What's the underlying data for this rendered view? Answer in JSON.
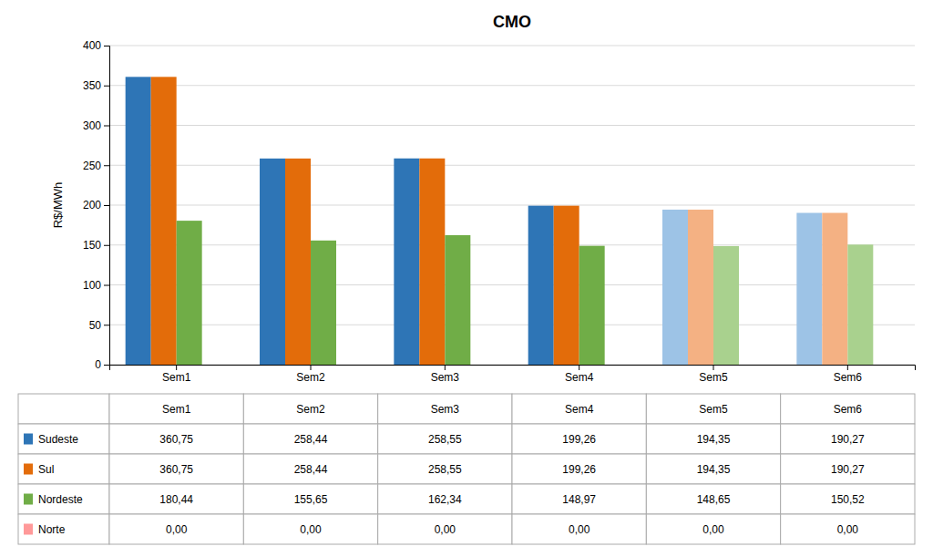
{
  "chart_data": {
    "type": "bar",
    "title": "CMO",
    "y_label": "R$/MWh",
    "categories": [
      "Sem1",
      "Sem2",
      "Sem3",
      "Sem4",
      "Sem5",
      "Sem6"
    ],
    "series": [
      {
        "name": "Sudeste",
        "color": "#2E75B6",
        "colors": [
          "#2E75B6",
          "#2E75B6",
          "#2E75B6",
          "#2E75B6",
          "#9DC3E6",
          "#9DC3E6"
        ],
        "values": [
          360.75,
          258.44,
          258.55,
          199.26,
          194.35,
          190.27
        ],
        "value_labels": [
          "360,75",
          "258,44",
          "258,55",
          "199,26",
          "194,35",
          "190,27"
        ]
      },
      {
        "name": "Sul",
        "color": "#E36C0A",
        "colors": [
          "#E36C0A",
          "#E36C0A",
          "#E36C0A",
          "#E36C0A",
          "#F4B183",
          "#F4B183"
        ],
        "values": [
          360.75,
          258.44,
          258.55,
          199.26,
          194.35,
          190.27
        ],
        "value_labels": [
          "360,75",
          "258,44",
          "258,55",
          "199,26",
          "194,35",
          "190,27"
        ]
      },
      {
        "name": "Nordeste",
        "color": "#70AD47",
        "colors": [
          "#70AD47",
          "#70AD47",
          "#70AD47",
          "#70AD47",
          "#A9D18E",
          "#A9D18E"
        ],
        "values": [
          180.44,
          155.65,
          162.34,
          148.97,
          148.65,
          150.52
        ],
        "value_labels": [
          "180,44",
          "155,65",
          "162,34",
          "148,97",
          "148,65",
          "150,52"
        ]
      },
      {
        "name": "Norte",
        "color": "#FF9999",
        "colors": [
          "#FF9999",
          "#FF9999",
          "#FF9999",
          "#FF9999",
          "#FFCCCC",
          "#FFCCCC"
        ],
        "values": [
          0.0,
          0.0,
          0.0,
          0.0,
          0.0,
          0.0
        ],
        "value_labels": [
          "0,00",
          "0,00",
          "0,00",
          "0,00",
          "0,00",
          "0,00"
        ]
      }
    ],
    "ylim": [
      0,
      400
    ],
    "yticks": [
      0,
      50,
      100,
      150,
      200,
      250,
      300,
      350,
      400
    ],
    "grid": true
  }
}
